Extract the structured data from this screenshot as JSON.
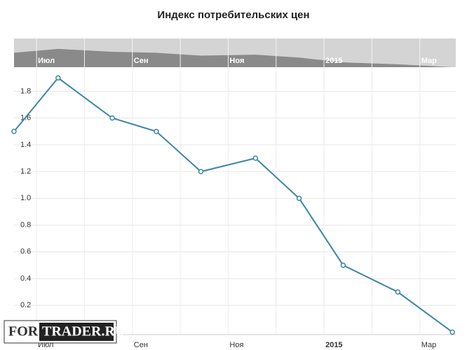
{
  "chart_data": {
    "type": "line",
    "title": "Индекс потребительских цен",
    "x": [
      -0.47,
      0.45,
      1.58,
      2.5,
      3.43,
      4.57,
      5.48,
      6.4,
      7.54,
      8.68
    ],
    "series": [
      {
        "name": "Индекс потребительских цен",
        "color": "#3d85a8",
        "values": [
          1.5,
          1.9,
          1.6,
          1.5,
          1.2,
          1.3,
          1.0,
          0.5,
          0.3,
          0.0
        ]
      }
    ],
    "xlim": [
      -0.47,
      8.75
    ],
    "xticks": [
      {
        "value": 0,
        "label": "Июл"
      },
      {
        "value": 1,
        "label": null
      },
      {
        "value": 2,
        "label": "Сен"
      },
      {
        "value": 3,
        "label": null
      },
      {
        "value": 4,
        "label": "Ноя"
      },
      {
        "value": 5,
        "label": null
      },
      {
        "value": 6,
        "label": "2015"
      },
      {
        "value": 7,
        "label": null
      },
      {
        "value": 8,
        "label": "Мар"
      }
    ],
    "ylim": [
      0,
      1.98
    ],
    "yticks": [
      0.2,
      0.4,
      0.6,
      0.8,
      {
        "value": 1,
        "label": "1.0"
      },
      1.2,
      1.4,
      1.6,
      1.8
    ],
    "grid": true,
    "watermark": [
      "FOR",
      "TRADER.RU"
    ]
  }
}
